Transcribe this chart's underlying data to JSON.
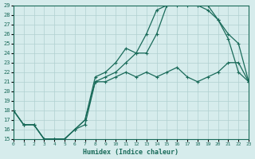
{
  "xlabel": "Humidex (Indice chaleur)",
  "bg_color": "#d6ecec",
  "grid_color": "#b0d0d0",
  "line_color": "#1a6b5a",
  "xlim": [
    0,
    23
  ],
  "ylim": [
    15,
    29
  ],
  "xticks": [
    0,
    1,
    2,
    3,
    4,
    5,
    6,
    7,
    8,
    9,
    10,
    11,
    12,
    13,
    14,
    15,
    16,
    17,
    18,
    19,
    20,
    21,
    22,
    23
  ],
  "yticks": [
    15,
    16,
    17,
    18,
    19,
    20,
    21,
    22,
    23,
    24,
    25,
    26,
    27,
    28,
    29
  ],
  "line1_x": [
    0,
    1,
    2,
    3,
    4,
    5,
    6,
    7,
    8,
    9,
    10,
    11,
    12,
    13,
    14,
    15,
    16,
    17,
    18,
    19,
    20,
    21,
    22,
    23
  ],
  "line1_y": [
    18.0,
    16.5,
    16.5,
    15.0,
    15.0,
    15.0,
    16.0,
    16.5,
    21.0,
    21.0,
    21.5,
    22.0,
    21.5,
    22.0,
    21.5,
    22.0,
    22.5,
    21.5,
    21.0,
    21.5,
    22.0,
    23.0,
    23.0,
    21.0
  ],
  "line2_x": [
    0,
    1,
    2,
    3,
    4,
    5,
    6,
    7,
    8,
    9,
    10,
    11,
    12,
    13,
    14,
    15,
    16,
    17,
    18,
    19,
    20,
    21,
    22,
    23
  ],
  "line2_y": [
    18.0,
    16.5,
    16.5,
    15.0,
    15.0,
    15.0,
    16.0,
    17.0,
    21.0,
    21.5,
    22.0,
    23.0,
    24.0,
    24.0,
    26.0,
    29.0,
    29.0,
    29.0,
    29.0,
    28.5,
    27.5,
    25.5,
    22.0,
    21.0
  ],
  "line3_x": [
    0,
    1,
    2,
    3,
    4,
    5,
    6,
    7,
    8,
    9,
    10,
    11,
    12,
    13,
    14,
    15,
    16,
    17,
    18,
    19,
    20,
    21,
    22,
    23
  ],
  "line3_y": [
    18.0,
    16.5,
    16.5,
    15.0,
    15.0,
    15.0,
    16.0,
    17.0,
    21.5,
    22.0,
    23.0,
    24.5,
    24.0,
    26.0,
    28.5,
    29.0,
    29.5,
    29.5,
    29.0,
    29.0,
    27.5,
    26.0,
    25.0,
    21.0
  ]
}
